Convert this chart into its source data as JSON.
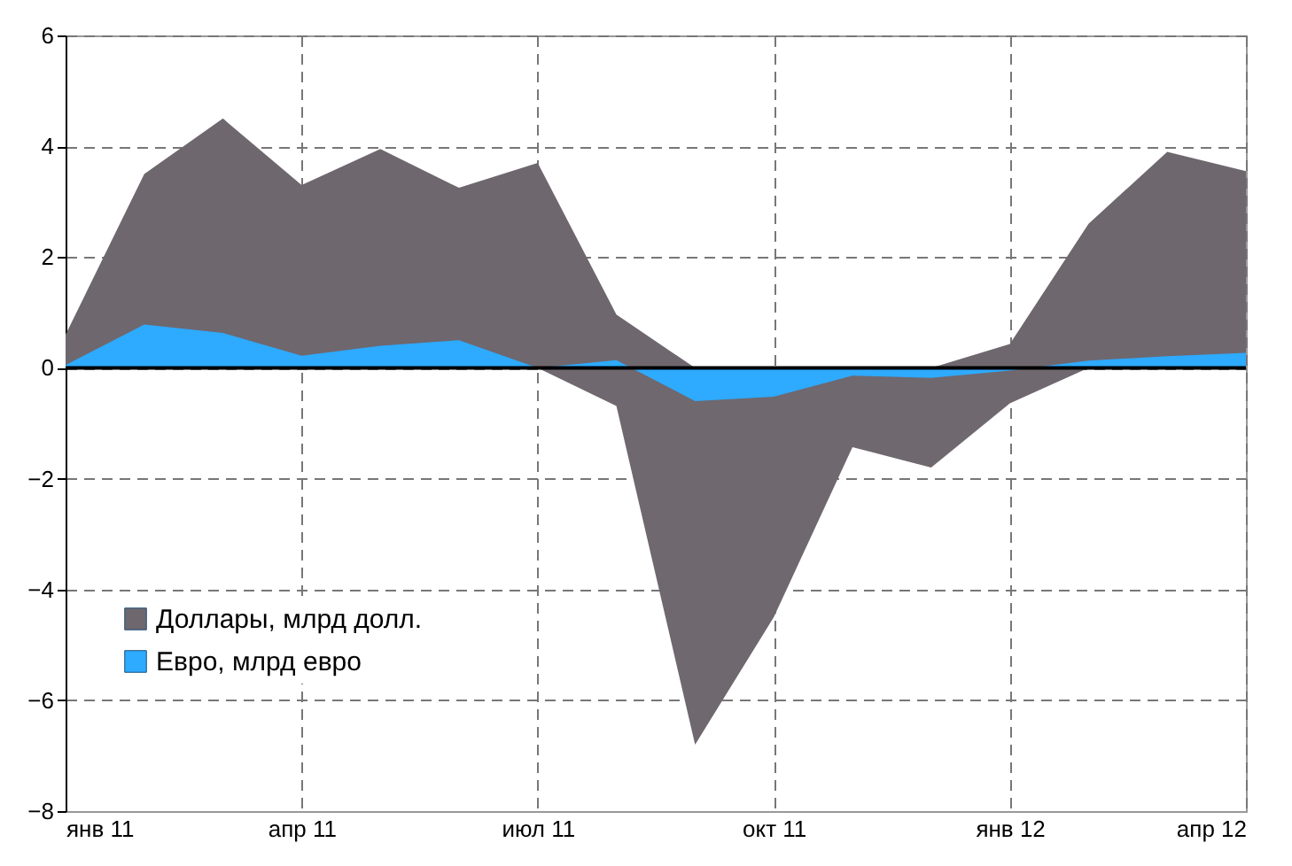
{
  "chart_data": {
    "type": "area",
    "categories": [
      "янв 11",
      null,
      null,
      "апр 11",
      null,
      null,
      "июл 11",
      null,
      null,
      "окт 11",
      null,
      null,
      "янв 12",
      null,
      null,
      "апр 12"
    ],
    "series": [
      {
        "name": "Доллары, млрд долл.",
        "color": "#6e676e",
        "values": [
          0.6,
          3.5,
          4.5,
          3.3,
          3.95,
          3.25,
          3.7,
          0.96,
          0,
          0,
          0,
          0,
          0.43,
          2.6,
          3.9,
          3.55
        ]
      },
      {
        "color": "#6f686f",
        "values": [
          0,
          0,
          0,
          0,
          0,
          0,
          0,
          -0.69,
          -6.8,
          -4.5,
          -1.43,
          -1.8,
          -0.64,
          0,
          0,
          0
        ]
      },
      {
        "name": "Евро, млрд евро",
        "color": "#2eaaff",
        "values": [
          0.05,
          0.78,
          0.63,
          0.22,
          0.4,
          0.5,
          0,
          0.14,
          -0.6,
          -0.52,
          -0.14,
          -0.18,
          -0.05,
          0.13,
          0.21,
          0.27
        ]
      }
    ],
    "ylim": [
      -8,
      6
    ],
    "yticks": [
      -8,
      -6,
      -4,
      -2,
      0,
      2,
      4,
      6
    ],
    "grid": true,
    "legend": "bottom left"
  }
}
